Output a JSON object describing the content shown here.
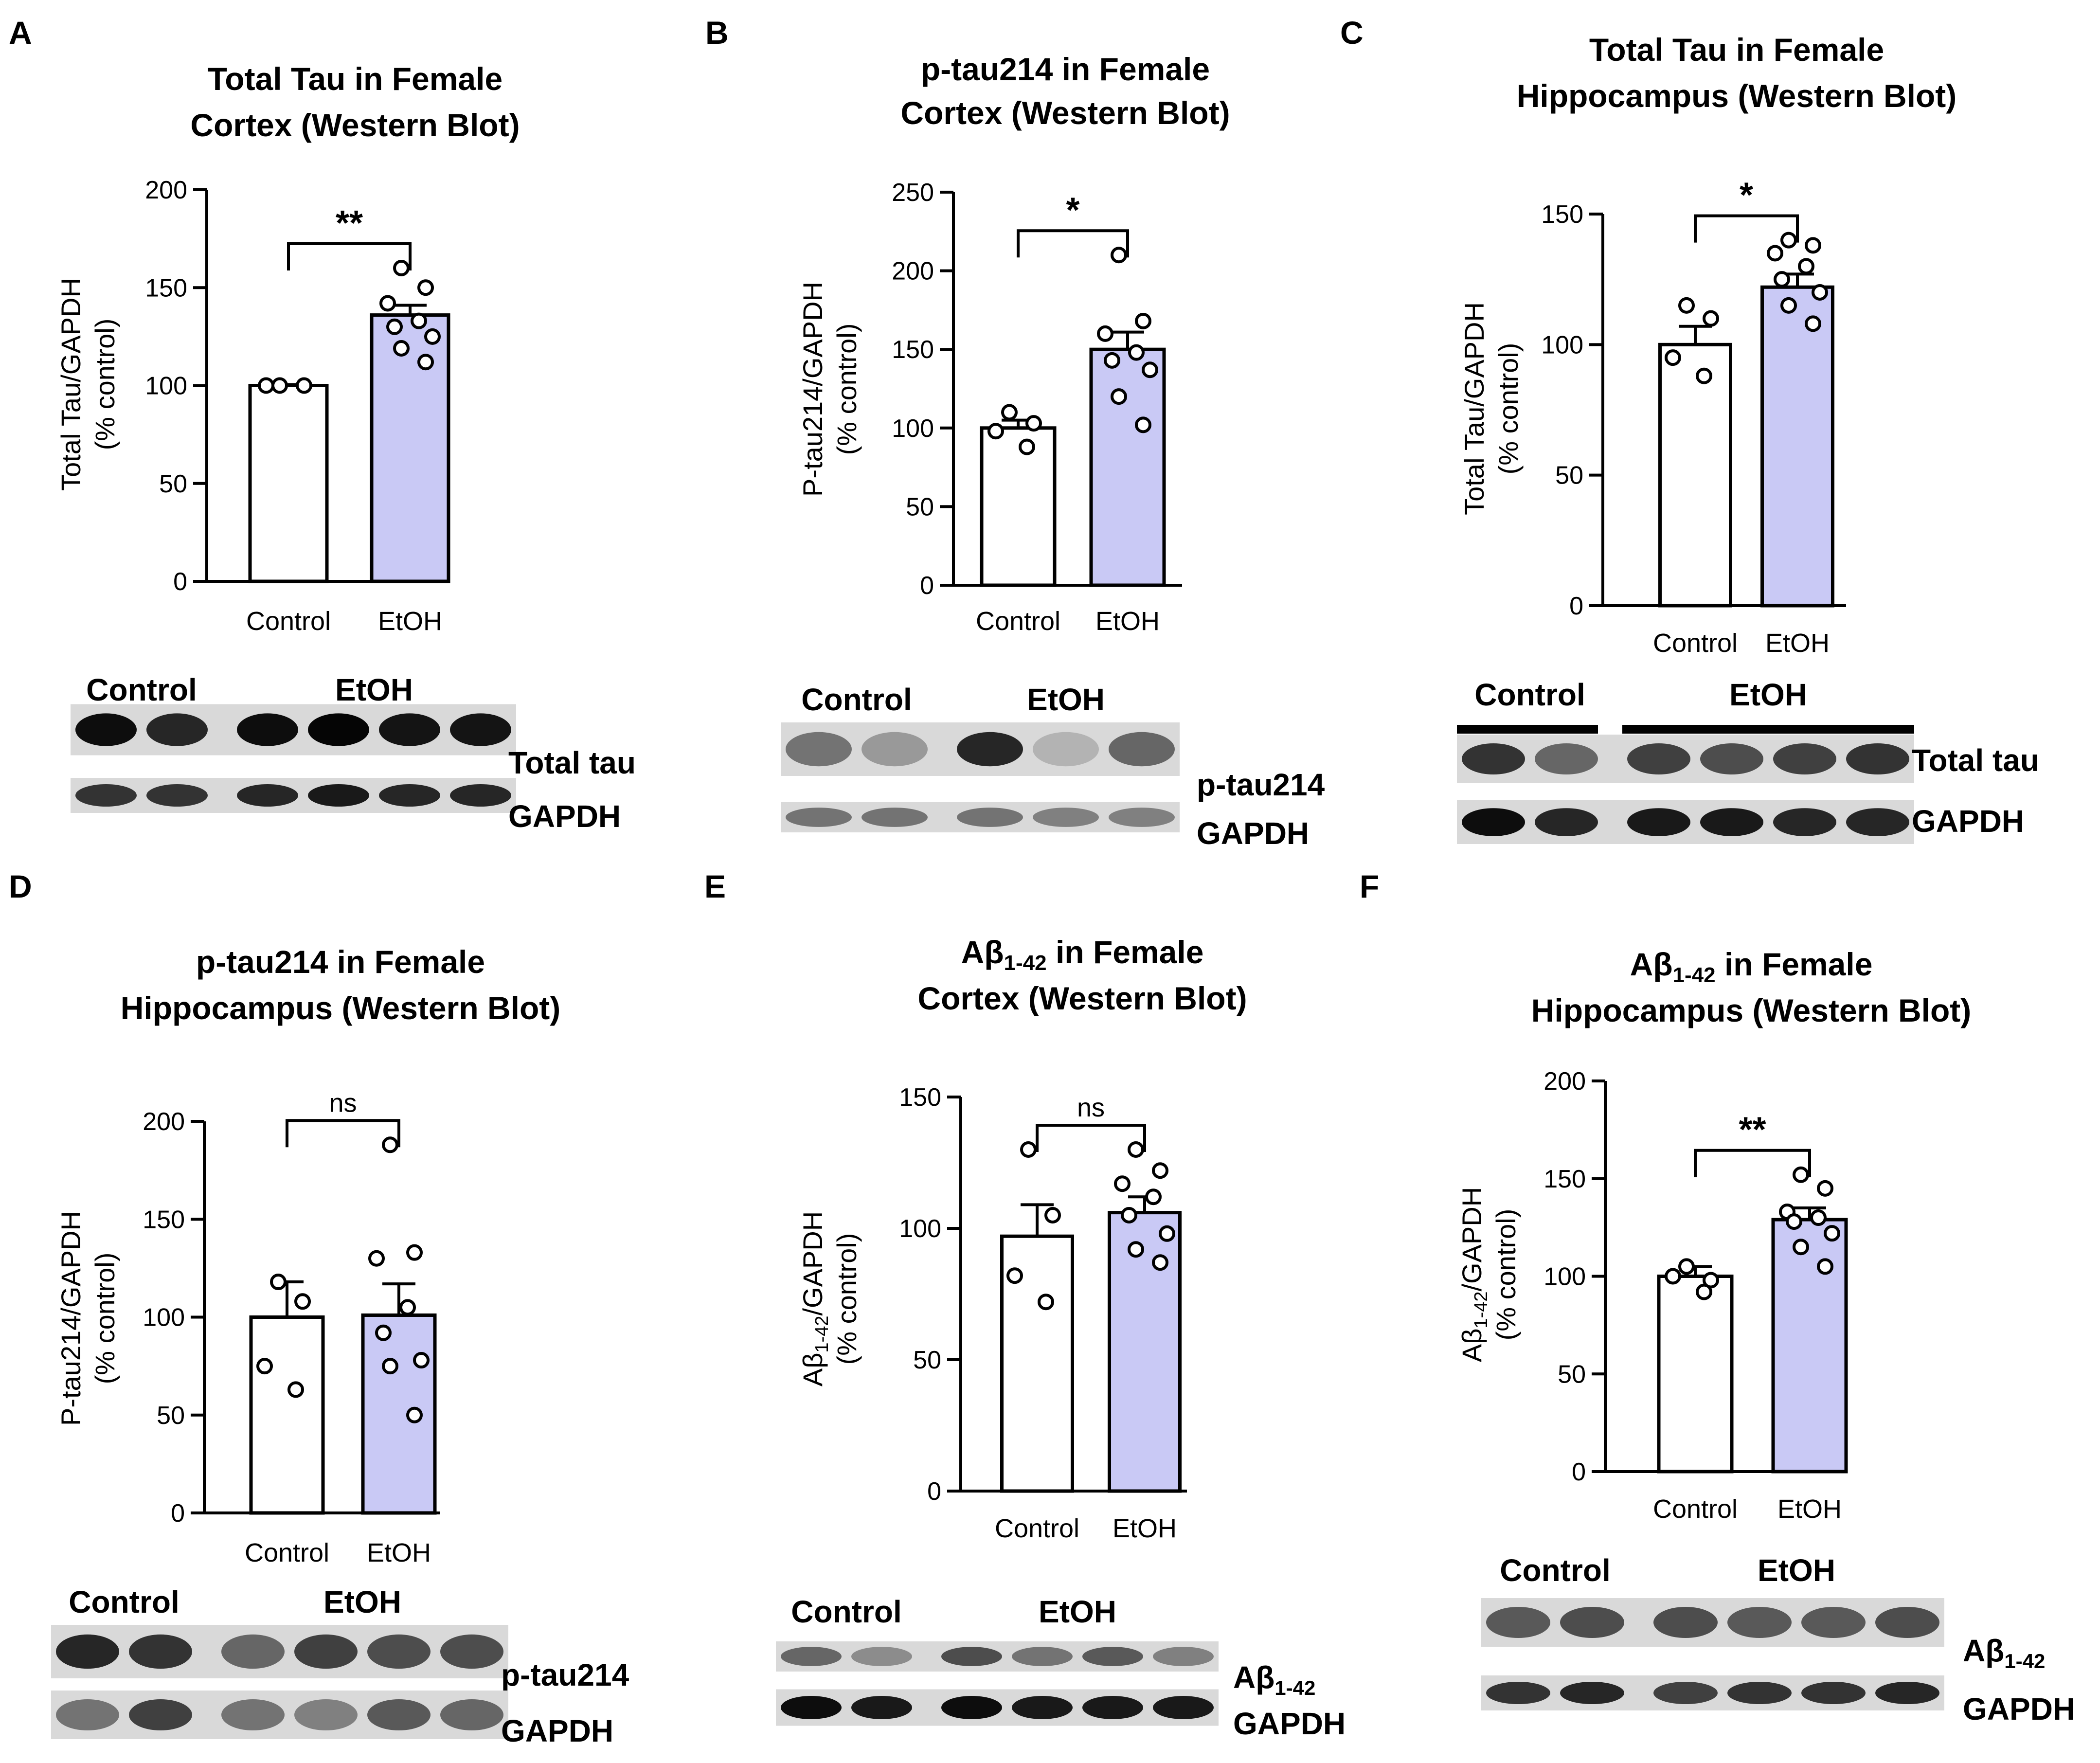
{
  "colors": {
    "ethanol_bar": "#c9c9f5",
    "control_bar": "#ffffff",
    "stroke": "#000000",
    "background": "#ffffff"
  },
  "chart_data": [
    {
      "panel": "A",
      "type": "bar",
      "title": "Total Tau in Female Cortex (Western Blot)",
      "title_lines": [
        "Total Tau in Female",
        "Cortex (Western Blot)"
      ],
      "ylabel": "Total Tau/GAPDH",
      "ylabel2": "(% control)",
      "ylabel_sub": null,
      "ylim": [
        0,
        200
      ],
      "yticks": [
        0,
        50,
        100,
        150,
        200
      ],
      "categories": [
        "Control",
        "EtOH"
      ],
      "values": [
        100,
        136
      ],
      "sem": [
        0.5,
        5
      ],
      "points": [
        [
          100,
          100,
          100
        ],
        [
          160,
          150,
          142,
          133,
          130,
          125,
          119,
          112
        ]
      ],
      "significance": "**",
      "blot": {
        "groups": [
          "Control",
          "EtOH"
        ],
        "lanes": [
          2,
          4
        ],
        "bands": [
          {
            "label": "Total tau",
            "label_sub": null,
            "intensity": [
              0.95,
              0.85,
              0.95,
              0.98,
              0.92,
              0.92
            ]
          },
          {
            "label": "GAPDH",
            "label_sub": null,
            "intensity": [
              0.8,
              0.8,
              0.85,
              0.9,
              0.85,
              0.85
            ]
          }
        ]
      }
    },
    {
      "panel": "B",
      "type": "bar",
      "title": "p-tau214 in Female Cortex (Western Blot)",
      "title_lines": [
        "p-tau214 in Female",
        "Cortex (Western Blot)"
      ],
      "ylabel": "P-tau214/GAPDH",
      "ylabel2": "(% control)",
      "ylabel_sub": null,
      "ylim": [
        0,
        250
      ],
      "yticks": [
        0,
        50,
        100,
        150,
        200,
        250
      ],
      "categories": [
        "Control",
        "EtOH"
      ],
      "values": [
        100,
        150
      ],
      "sem": [
        5,
        11
      ],
      "points": [
        [
          110,
          103,
          98,
          88
        ],
        [
          210,
          168,
          160,
          148,
          143,
          137,
          120,
          102
        ]
      ],
      "significance": "*",
      "blot": {
        "groups": [
          "Control",
          "EtOH"
        ],
        "lanes": [
          2,
          3
        ],
        "bands": [
          {
            "label": "p-tau214",
            "label_sub": null,
            "intensity": [
              0.55,
              0.4,
              0.85,
              0.3,
              0.6
            ]
          },
          {
            "label": "GAPDH",
            "label_sub": null,
            "intensity": [
              0.55,
              0.55,
              0.55,
              0.5,
              0.5
            ]
          }
        ]
      }
    },
    {
      "panel": "C",
      "type": "bar",
      "title": "Total Tau in Female Hippocampus (Western Blot)",
      "title_lines": [
        "Total Tau in Female",
        "Hippocampus (Western Blot)"
      ],
      "ylabel": "Total Tau/GAPDH",
      "ylabel2": "(% control)",
      "ylabel_sub": null,
      "ylim": [
        0,
        150
      ],
      "yticks": [
        0,
        50,
        100,
        150
      ],
      "categories": [
        "Control",
        "EtOH"
      ],
      "values": [
        100,
        122
      ],
      "sem": [
        7,
        5
      ],
      "points": [
        [
          115,
          110,
          95,
          88
        ],
        [
          140,
          138,
          135,
          130,
          125,
          120,
          115,
          108
        ]
      ],
      "significance": "*",
      "blot": {
        "groups": [
          "Control",
          "EtOH"
        ],
        "lanes": [
          2,
          4
        ],
        "bands": [
          {
            "label": "Total tau",
            "label_sub": null,
            "intensity": [
              0.8,
              0.6,
              0.75,
              0.7,
              0.75,
              0.8
            ]
          },
          {
            "label": "GAPDH",
            "label_sub": null,
            "intensity": [
              0.95,
              0.85,
              0.9,
              0.9,
              0.85,
              0.85
            ]
          }
        ]
      }
    },
    {
      "panel": "D",
      "type": "bar",
      "title": "p-tau214 in Female Hippocampus (Western Blot)",
      "title_lines": [
        "p-tau214 in Female",
        "Hippocampus (Western Blot)"
      ],
      "ylabel": "P-tau214/GAPDH",
      "ylabel2": "(% control)",
      "ylabel_sub": null,
      "ylim": [
        0,
        200
      ],
      "yticks": [
        0,
        50,
        100,
        150,
        200
      ],
      "categories": [
        "Control",
        "EtOH"
      ],
      "values": [
        100,
        101
      ],
      "sem": [
        18,
        16
      ],
      "points": [
        [
          118,
          108,
          75,
          63
        ],
        [
          188,
          133,
          130,
          105,
          92,
          78,
          75,
          50
        ]
      ],
      "significance": "ns",
      "blot": {
        "groups": [
          "Control",
          "EtOH"
        ],
        "lanes": [
          2,
          4
        ],
        "bands": [
          {
            "label": "p-tau214",
            "label_sub": null,
            "intensity": [
              0.85,
              0.8,
              0.6,
              0.75,
              0.7,
              0.7
            ]
          },
          {
            "label": "GAPDH",
            "label_sub": null,
            "intensity": [
              0.55,
              0.75,
              0.55,
              0.5,
              0.65,
              0.6
            ]
          }
        ]
      }
    },
    {
      "panel": "E",
      "type": "bar",
      "title": "Aβ1-42 in Female Cortex (Western Blot)",
      "title_lines": [
        "Aβ1-42 in Female",
        "Cortex (Western Blot)"
      ],
      "ylabel": "Aβ/GAPDH",
      "ylabel2": "(% control)",
      "ylabel_sub": "1-42",
      "ylim": [
        0,
        150
      ],
      "yticks": [
        0,
        50,
        100,
        150
      ],
      "categories": [
        "Control",
        "EtOH"
      ],
      "values": [
        97,
        106
      ],
      "sem": [
        12,
        6
      ],
      "points": [
        [
          130,
          105,
          82,
          72
        ],
        [
          130,
          122,
          117,
          112,
          105,
          98,
          92,
          87
        ]
      ],
      "significance": "ns",
      "blot": {
        "groups": [
          "Control",
          "EtOH"
        ],
        "lanes": [
          2,
          4
        ],
        "bands": [
          {
            "label": "Aβ1-42",
            "label_sub": null,
            "intensity": [
              0.6,
              0.45,
              0.7,
              0.55,
              0.65,
              0.5
            ]
          },
          {
            "label": "GAPDH",
            "label_sub": null,
            "intensity": [
              0.95,
              0.9,
              0.95,
              0.9,
              0.9,
              0.9
            ]
          }
        ]
      }
    },
    {
      "panel": "F",
      "type": "bar",
      "title": "Aβ1-42 in Female Hippocampus (Western Blot)",
      "title_lines": [
        "Aβ1-42 in Female",
        "Hippocampus (Western Blot)"
      ],
      "ylabel": "Aβ/GAPDH",
      "ylabel2": "(% control)",
      "ylabel_sub": "1-42",
      "ylim": [
        0,
        200
      ],
      "yticks": [
        0,
        50,
        100,
        150,
        200
      ],
      "categories": [
        "Control",
        "EtOH"
      ],
      "values": [
        100,
        129
      ],
      "sem": [
        5,
        6
      ],
      "points": [
        [
          105,
          98,
          100,
          92
        ],
        [
          152,
          145,
          133,
          130,
          128,
          122,
          115,
          105
        ]
      ],
      "significance": "**",
      "blot": {
        "groups": [
          "Control",
          "EtOH"
        ],
        "lanes": [
          2,
          4
        ],
        "bands": [
          {
            "label": "Aβ1-42",
            "label_sub": null,
            "intensity": [
              0.65,
              0.7,
              0.7,
              0.65,
              0.65,
              0.7
            ]
          },
          {
            "label": "GAPDH",
            "label_sub": null,
            "intensity": [
              0.8,
              0.85,
              0.75,
              0.8,
              0.8,
              0.85
            ]
          }
        ]
      }
    }
  ]
}
